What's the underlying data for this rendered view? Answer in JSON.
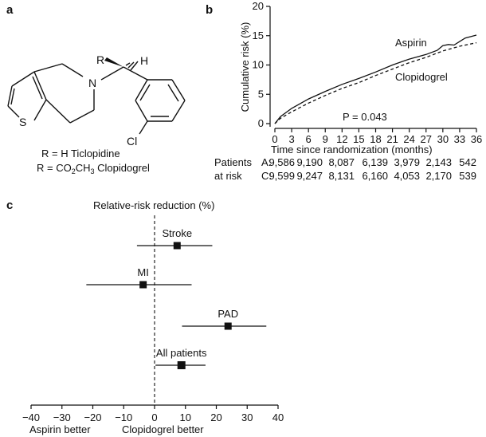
{
  "panels": {
    "a": "a",
    "b": "b",
    "c": "c"
  },
  "structure": {
    "r_label": "R",
    "h_label": "H",
    "n_label": "N",
    "s_label": "S",
    "cl_label": "Cl",
    "legend_line1": "R = H Ticlopidine",
    "legend_line2_prefix": "R = CO",
    "legend_line2_sub1": "2",
    "legend_line2_mid": "CH",
    "legend_line2_sub2": "3",
    "legend_line2_suffix": " Clopidogrel"
  },
  "risk_table": {
    "header_line1": "Patients",
    "header_line2": "at risk",
    "rows": [
      {
        "label": "A:",
        "values": [
          "9,586",
          "9,190",
          "8,087",
          "6,139",
          "3,979",
          "2,143",
          "542"
        ]
      },
      {
        "label": "C:",
        "values": [
          "9,599",
          "9,247",
          "8,131",
          "6,160",
          "4,053",
          "2,170",
          "539"
        ]
      }
    ]
  },
  "chart_data": [
    {
      "type": "line",
      "ylabel": "Cumulative risk (%)",
      "xlabel": "Time since randomization (months)",
      "xlim": [
        0,
        36
      ],
      "ylim": [
        0,
        20
      ],
      "x_ticks": [
        0,
        3,
        6,
        9,
        12,
        15,
        18,
        21,
        24,
        27,
        30,
        33,
        36
      ],
      "y_ticks": [
        0,
        5,
        10,
        15,
        20
      ],
      "annotation": "P = 0.043",
      "series": [
        {
          "name": "Aspirin",
          "style": "solid",
          "x": [
            0,
            1,
            3,
            6,
            9,
            12,
            15,
            18,
            21,
            24,
            27,
            29,
            30,
            31,
            32,
            33,
            34,
            36
          ],
          "y": [
            0,
            1.2,
            2.6,
            4.2,
            5.5,
            6.7,
            7.7,
            8.8,
            10.0,
            11.0,
            11.8,
            12.5,
            13.3,
            13.5,
            13.4,
            14.0,
            14.6,
            15.1
          ]
        },
        {
          "name": "Clopidogrel",
          "style": "dashed",
          "x": [
            0,
            1,
            3,
            6,
            9,
            12,
            15,
            18,
            21,
            24,
            27,
            30,
            33,
            36
          ],
          "y": [
            0,
            0.9,
            2.0,
            3.5,
            4.8,
            6.0,
            7.0,
            8.2,
            9.3,
            10.4,
            11.3,
            12.4,
            13.2,
            13.8
          ]
        }
      ]
    },
    {
      "type": "forest",
      "title": "Relative-risk reduction (%)",
      "xlim": [
        -40,
        40
      ],
      "x_ticks": [
        -40,
        -30,
        -20,
        -10,
        0,
        10,
        20,
        30,
        40
      ],
      "x_tick_labels": [
        "−40",
        "−30",
        "−20",
        "−10",
        "0",
        "10",
        "20",
        "30",
        "40"
      ],
      "left_label": "Aspirin better",
      "right_label": "Clopidogrel better",
      "reference_line": 0,
      "rows": [
        {
          "label": "Stroke",
          "estimate": 7.3,
          "lower": -5.7,
          "upper": 18.7
        },
        {
          "label": "MI",
          "estimate": -3.7,
          "lower": -22.1,
          "upper": 12.0
        },
        {
          "label": "PAD",
          "estimate": 23.8,
          "lower": 8.9,
          "upper": 36.2
        },
        {
          "label": "All patients",
          "estimate": 8.7,
          "lower": 0.3,
          "upper": 16.5
        }
      ]
    }
  ]
}
